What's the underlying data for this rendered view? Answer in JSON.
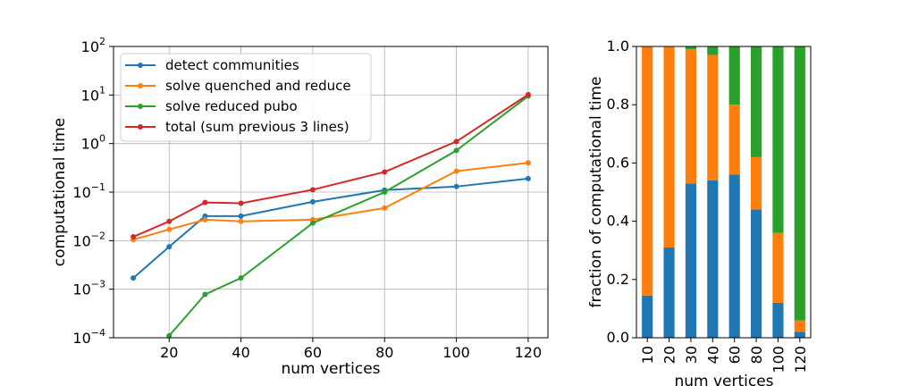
{
  "chart_data": [
    {
      "type": "line",
      "xlabel": "num vertices",
      "ylabel": "computational time",
      "yscale": "log",
      "xlim": [
        4.5,
        125.5
      ],
      "ylim": [
        0.0001,
        100
      ],
      "x_ticks": [
        "20",
        "40",
        "60",
        "80",
        "100",
        "120"
      ],
      "y_ticks": [
        {
          "base": "10",
          "exp": "2"
        },
        {
          "base": "10",
          "exp": "1"
        },
        {
          "base": "10",
          "exp": "0"
        },
        {
          "base": "10",
          "exp": "−1"
        },
        {
          "base": "10",
          "exp": "−2"
        },
        {
          "base": "10",
          "exp": "−3"
        },
        {
          "base": "10",
          "exp": "−4"
        }
      ],
      "grid": true,
      "legend_position": "top-left",
      "x": [
        10,
        20,
        30,
        40,
        60,
        80,
        100,
        120
      ],
      "series": [
        {
          "name": "detect communities",
          "color": "#1f77b4",
          "values": [
            0.0017,
            0.0075,
            0.032,
            0.032,
            0.063,
            0.11,
            0.13,
            0.19
          ]
        },
        {
          "name": "solve quenched and reduce",
          "color": "#ff7f0e",
          "values": [
            0.0105,
            0.017,
            0.027,
            0.025,
            0.027,
            0.047,
            0.27,
            0.4
          ]
        },
        {
          "name": "solve reduced pubo",
          "color": "#2ca02c",
          "values": [
            null,
            0.00011,
            0.00078,
            0.0017,
            0.023,
            0.1,
            0.72,
            9.5
          ]
        },
        {
          "name": "total (sum previous 3 lines)",
          "color": "#d62728",
          "values": [
            0.012,
            0.025,
            0.061,
            0.059,
            0.112,
            0.26,
            1.1,
            10.2
          ]
        }
      ]
    },
    {
      "type": "bar",
      "stacked": true,
      "xlabel": "num vertices",
      "ylabel": "fraction of computational time",
      "ylim": [
        0,
        1
      ],
      "y_ticks": [
        "0.0",
        "0.2",
        "0.4",
        "0.6",
        "0.8",
        "1.0"
      ],
      "grid": false,
      "categories": [
        "10",
        "20",
        "30",
        "40",
        "60",
        "80",
        "100",
        "120"
      ],
      "series": [
        {
          "color": "#1f77b4",
          "values": [
            0.145,
            0.31,
            0.53,
            0.54,
            0.56,
            0.44,
            0.12,
            0.02
          ]
        },
        {
          "color": "#ff7f0e",
          "values": [
            0.855,
            0.69,
            0.46,
            0.43,
            0.24,
            0.18,
            0.24,
            0.04
          ]
        },
        {
          "color": "#2ca02c",
          "values": [
            0.0,
            0.0,
            0.01,
            0.03,
            0.2,
            0.38,
            0.64,
            0.94
          ]
        }
      ]
    }
  ]
}
